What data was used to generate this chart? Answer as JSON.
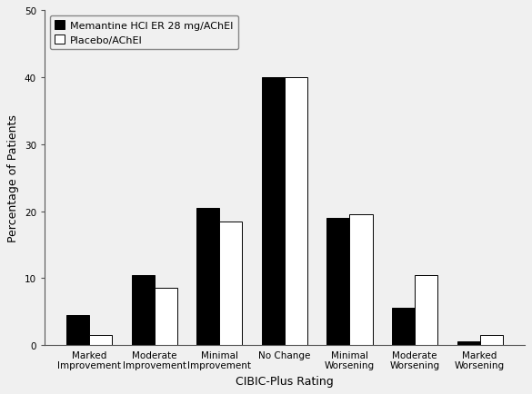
{
  "categories": [
    "Marked\nImprovement",
    "Moderate\nImprovement",
    "Minimal\nImprovement",
    "No Change",
    "Minimal\nWorsening",
    "Moderate\nWorsening",
    "Marked\nWorsening"
  ],
  "memantine_values": [
    4.5,
    10.5,
    20.5,
    40.0,
    19.0,
    5.5,
    0.5
  ],
  "placebo_values": [
    1.5,
    8.5,
    18.5,
    40.0,
    19.5,
    10.5,
    1.5
  ],
  "memantine_color": "#000000",
  "placebo_color": "#ffffff",
  "bar_edge_color": "#000000",
  "ylabel": "Percentage of Patients",
  "xlabel": "CIBIC-Plus Rating",
  "ylim": [
    0,
    50
  ],
  "yticks": [
    0,
    10,
    20,
    30,
    40,
    50
  ],
  "legend_memantine": "Memantine HCl ER 28 mg/AChEI",
  "legend_placebo": "Placebo/AChEI",
  "bar_width": 0.35,
  "axis_fontsize": 9,
  "tick_fontsize": 7.5,
  "legend_fontsize": 8,
  "background_color": "#f0f0f0"
}
